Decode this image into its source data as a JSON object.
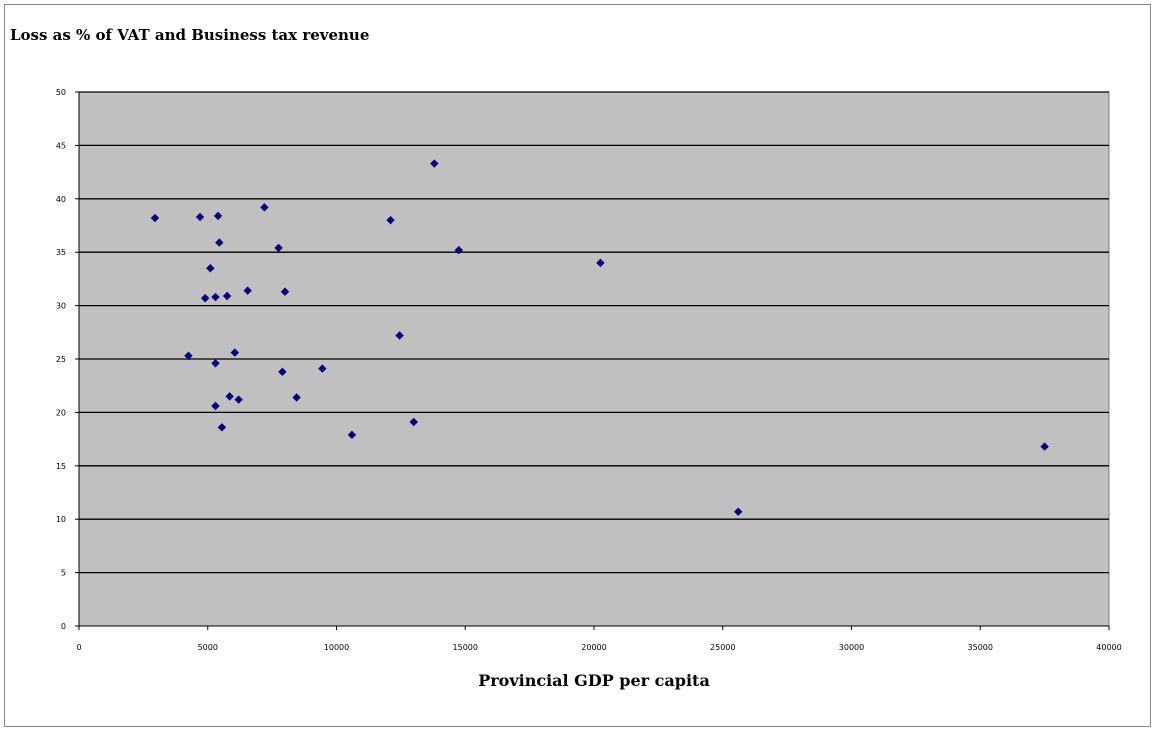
{
  "chart_data": {
    "type": "scatter",
    "title": "Loss as % of VAT and Business tax revenue",
    "xlabel": "Provincial GDP per capita",
    "ylabel": "",
    "xlim": [
      0,
      40000
    ],
    "ylim": [
      0,
      50
    ],
    "x_ticks": [
      "0",
      "5000",
      "10000",
      "15000",
      "20000",
      "25000",
      "30000",
      "35000",
      "40000"
    ],
    "y_ticks": [
      "0",
      "5",
      "10",
      "15",
      "20",
      "25",
      "30",
      "35",
      "40",
      "45",
      "50"
    ],
    "grid": true,
    "legend": "none",
    "colors": {
      "plot_background": "#c0c0c0",
      "gridline": "#000000",
      "marker": "#000080"
    },
    "points": [
      {
        "x": 2950,
        "y": 38.2
      },
      {
        "x": 4700,
        "y": 38.3
      },
      {
        "x": 5400,
        "y": 38.4
      },
      {
        "x": 7200,
        "y": 39.2
      },
      {
        "x": 13800,
        "y": 43.3
      },
      {
        "x": 12100,
        "y": 38.0
      },
      {
        "x": 5450,
        "y": 35.9
      },
      {
        "x": 7750,
        "y": 35.4
      },
      {
        "x": 14750,
        "y": 35.2
      },
      {
        "x": 20250,
        "y": 34.0
      },
      {
        "x": 5100,
        "y": 33.5
      },
      {
        "x": 4900,
        "y": 30.7
      },
      {
        "x": 5300,
        "y": 30.8
      },
      {
        "x": 5750,
        "y": 30.9
      },
      {
        "x": 6550,
        "y": 31.4
      },
      {
        "x": 8000,
        "y": 31.3
      },
      {
        "x": 12450,
        "y": 27.2
      },
      {
        "x": 4250,
        "y": 25.3
      },
      {
        "x": 5300,
        "y": 24.6
      },
      {
        "x": 6050,
        "y": 25.6
      },
      {
        "x": 7900,
        "y": 23.8
      },
      {
        "x": 9450,
        "y": 24.1
      },
      {
        "x": 5850,
        "y": 21.5
      },
      {
        "x": 6200,
        "y": 21.2
      },
      {
        "x": 5300,
        "y": 20.6
      },
      {
        "x": 8450,
        "y": 21.4
      },
      {
        "x": 5550,
        "y": 18.6
      },
      {
        "x": 10600,
        "y": 17.9
      },
      {
        "x": 13000,
        "y": 19.1
      },
      {
        "x": 37500,
        "y": 16.8
      },
      {
        "x": 25600,
        "y": 10.7
      }
    ]
  }
}
